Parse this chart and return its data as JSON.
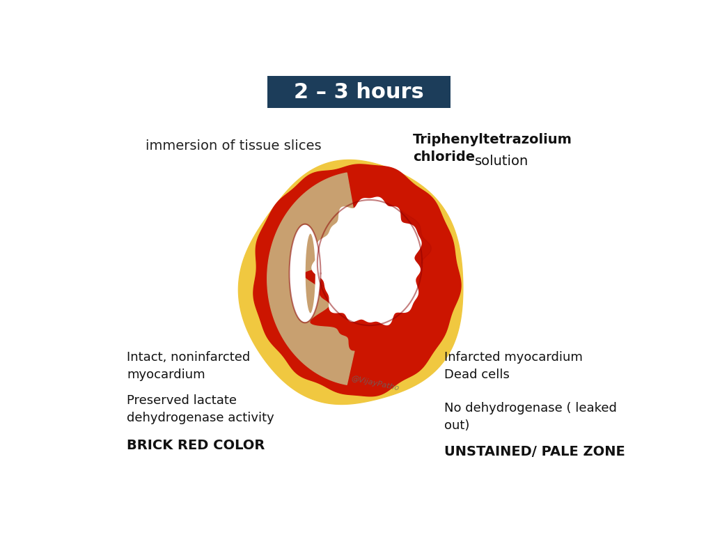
{
  "title": "2 – 3 hours",
  "title_bg": "#1c3d5a",
  "title_fg": "#ffffff",
  "title_fontsize": 22,
  "bg_color": "#ffffff",
  "left_label1": "immersion of tissue slices",
  "right_label1_bold": "Triphenyltetrazolium\nchloride",
  "right_label1_normal": "solution",
  "left_label2": "Intact, noninfarcted\nmyocardium",
  "left_label3": "Preserved lactate\ndehydrogenase activity",
  "left_label4": "BRICK RED COLOR",
  "right_label2": "Infarcted myocardium\nDead cells",
  "right_label3": "No dehydrogenase ( leaked\nout)",
  "right_label4": "UNSTAINED/ PALE ZONE",
  "watermark": "@VijayPatho",
  "brick_red": "#cc1500",
  "yellow_outer": "#f0c840",
  "pale_zone": "#c8a070",
  "dark_red": "#8b0000",
  "medium_red": "#bb1100"
}
